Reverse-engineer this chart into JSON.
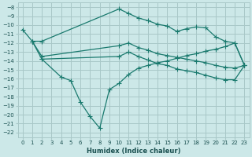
{
  "xlabel": "Humidex (Indice chaleur)",
  "background_color": "#cce8e8",
  "grid_color": "#a8c8c8",
  "line_color": "#1a7a6e",
  "xlim": [
    -0.5,
    23.5
  ],
  "ylim": [
    -22.5,
    -7.5
  ],
  "xticks": [
    0,
    1,
    2,
    3,
    4,
    5,
    6,
    7,
    8,
    9,
    10,
    11,
    12,
    13,
    14,
    15,
    16,
    17,
    18,
    19,
    20,
    21,
    22,
    23
  ],
  "yticks": [
    -8,
    -9,
    -10,
    -11,
    -12,
    -13,
    -14,
    -15,
    -16,
    -17,
    -18,
    -19,
    -20,
    -21,
    -22
  ],
  "line1_x": [
    0,
    1,
    2,
    10,
    11,
    12,
    13,
    14,
    15,
    16,
    17,
    18,
    19,
    20,
    21,
    22,
    23
  ],
  "line1_y": [
    -10.5,
    -11.8,
    -11.8,
    -8.2,
    -8.7,
    -9.2,
    -9.5,
    -9.9,
    -10.1,
    -10.7,
    -10.4,
    -10.2,
    -10.3,
    -11.3,
    -11.8,
    -12.0,
    -14.5
  ],
  "line2_x": [
    1,
    2,
    10,
    11,
    12,
    13,
    14,
    15,
    16,
    17,
    18,
    19,
    20,
    21,
    22,
    23
  ],
  "line2_y": [
    -11.8,
    -13.5,
    -12.3,
    -12.0,
    -12.5,
    -12.8,
    -13.2,
    -13.4,
    -13.6,
    -13.8,
    -14.0,
    -14.2,
    -14.5,
    -14.7,
    -14.8,
    -14.5
  ],
  "line3_x": [
    1,
    2,
    10,
    11,
    12,
    13,
    14,
    15,
    16,
    17,
    18,
    19,
    20,
    21,
    22,
    23
  ],
  "line3_y": [
    -11.8,
    -13.8,
    -13.5,
    -13.0,
    -13.5,
    -13.9,
    -14.3,
    -14.5,
    -14.9,
    -15.1,
    -15.3,
    -15.6,
    -15.9,
    -16.1,
    -16.1,
    -14.5
  ],
  "line4_x": [
    2,
    4,
    5,
    6,
    7,
    8,
    9,
    10,
    11,
    12,
    13,
    14,
    15,
    16,
    17,
    18,
    19,
    20,
    21,
    22,
    23
  ],
  "line4_y": [
    -13.8,
    -15.8,
    -16.2,
    -18.6,
    -20.2,
    -21.5,
    -17.2,
    -16.5,
    -15.5,
    -14.8,
    -14.5,
    -14.2,
    -14.0,
    -13.7,
    -13.4,
    -13.2,
    -12.9,
    -12.7,
    -12.4,
    -12.0,
    -14.5
  ]
}
